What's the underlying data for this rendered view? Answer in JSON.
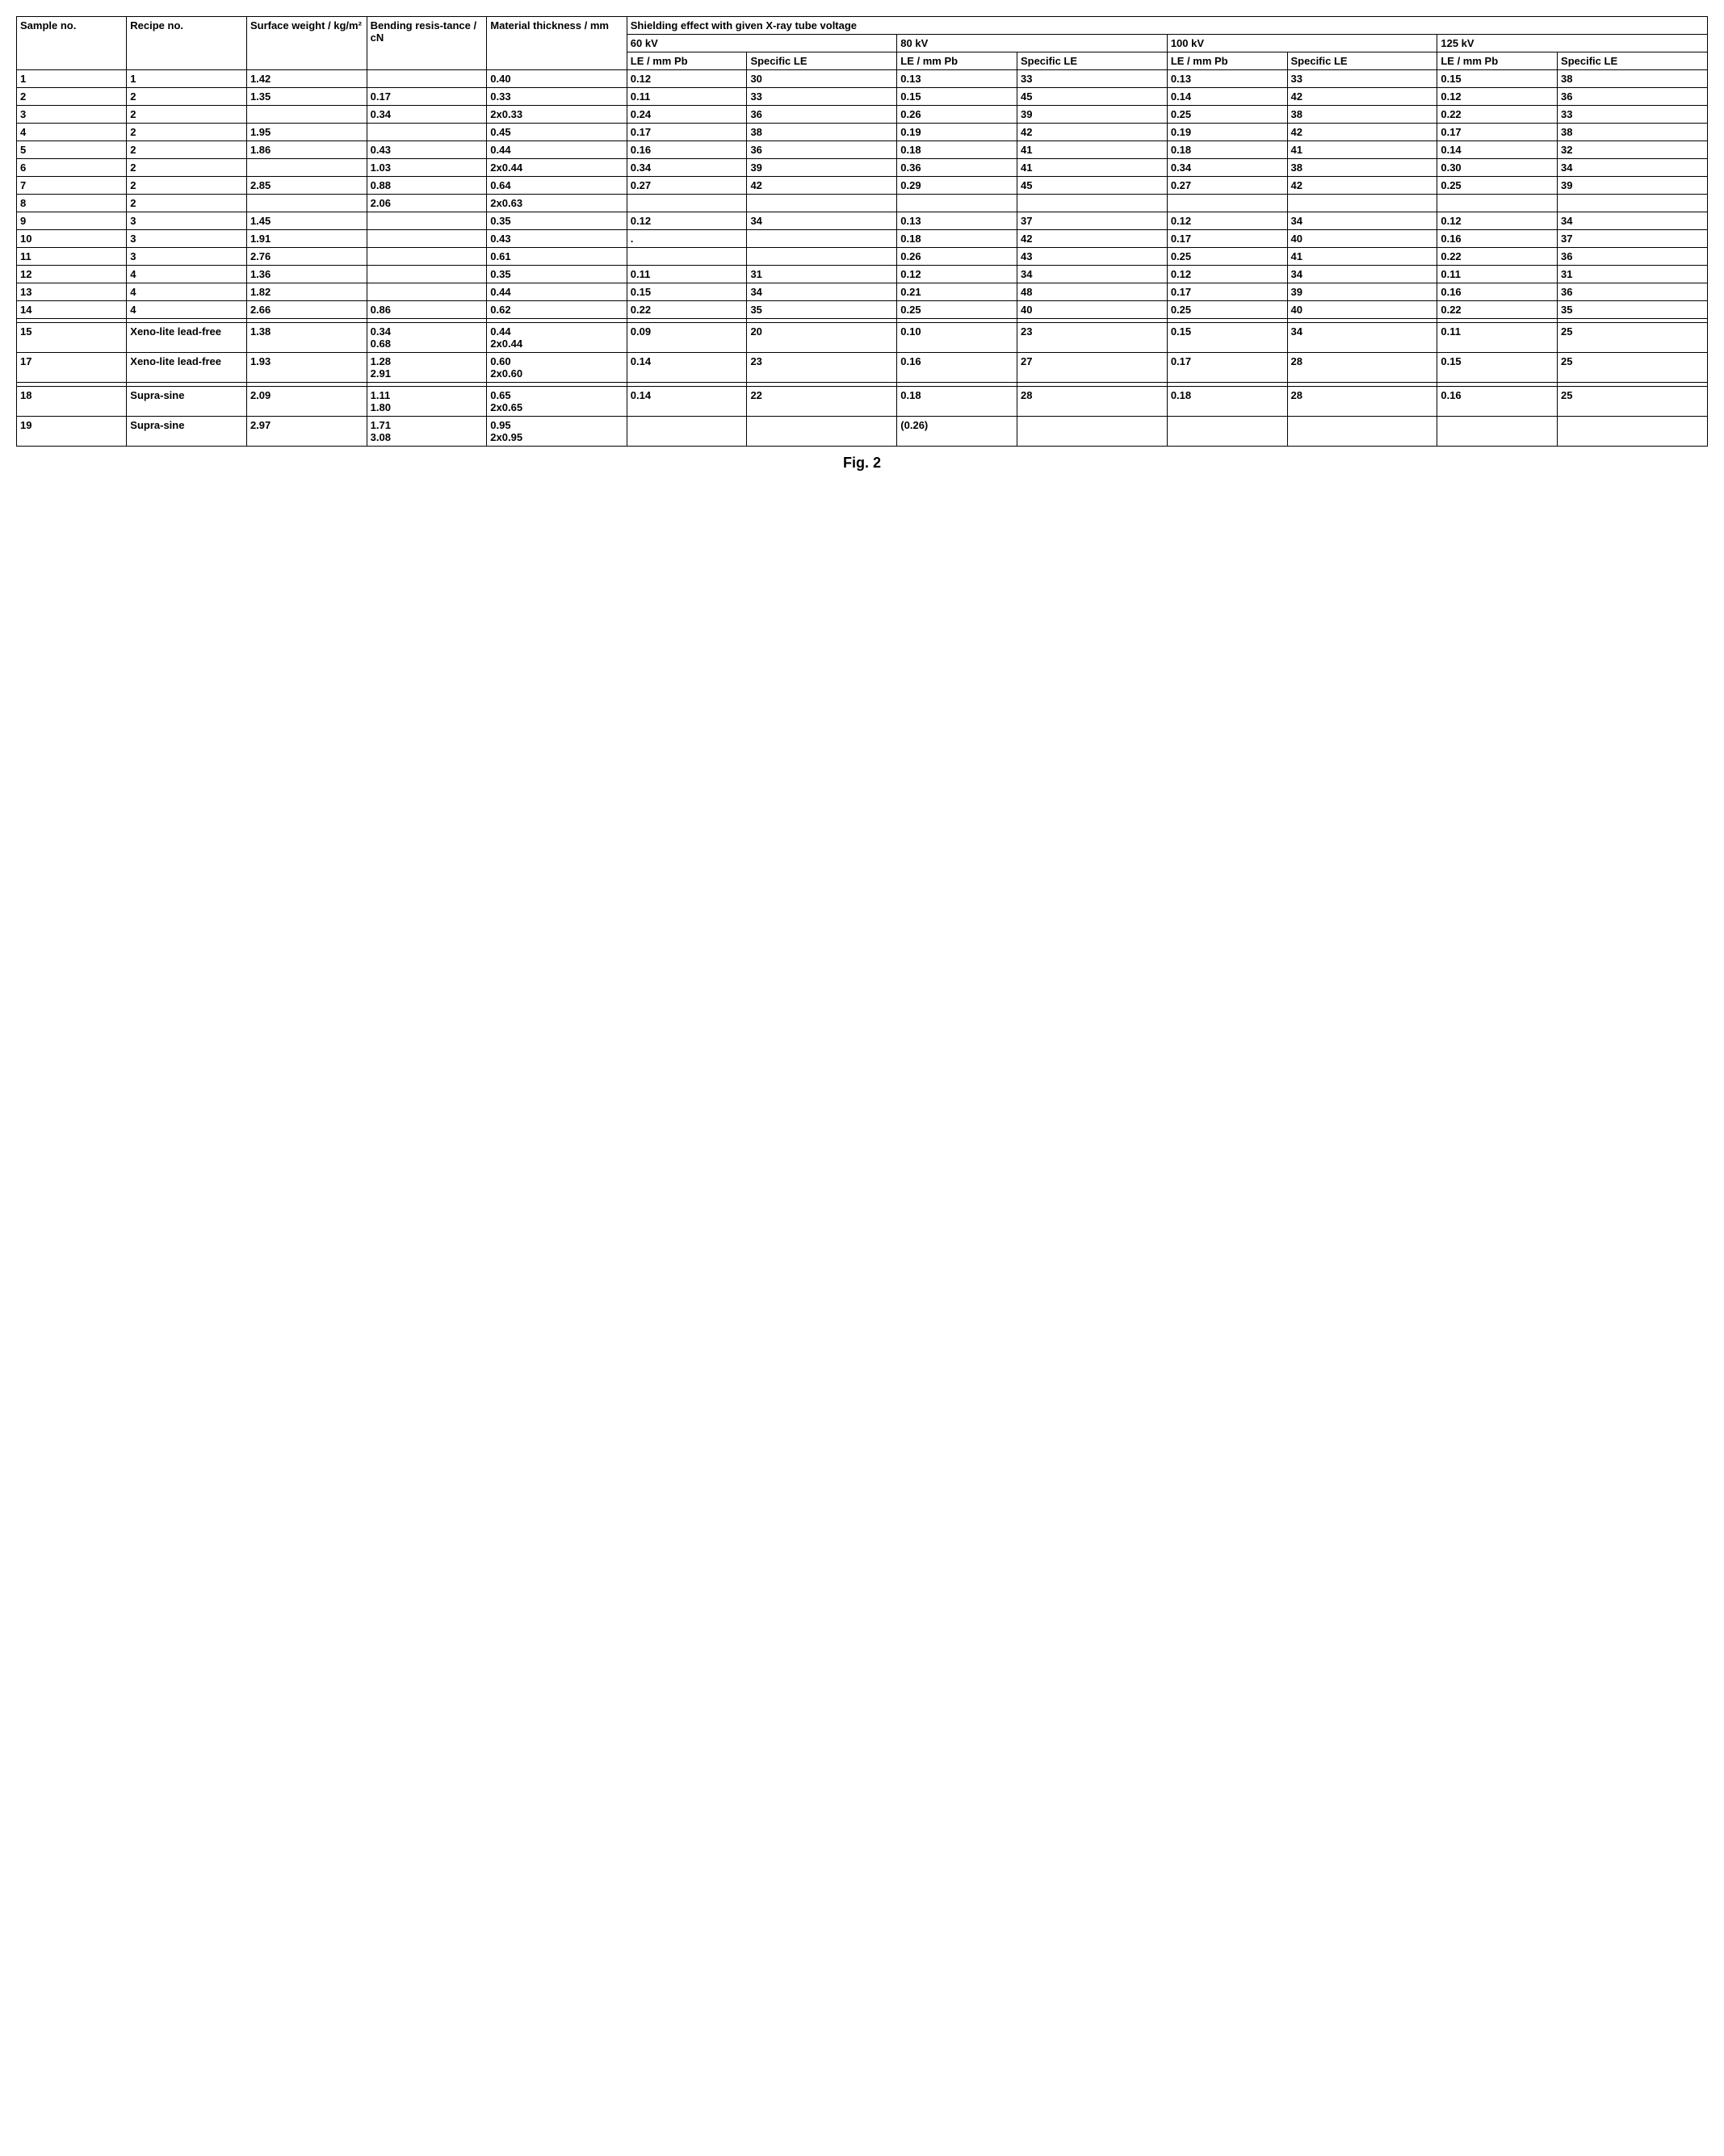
{
  "caption": "Fig. 2",
  "headers": {
    "sample": "Sample no.",
    "recipe": "Recipe no.",
    "surface": "Surface weight / kg/m²",
    "bending": "Bending resis-tance / cN",
    "material": "Material thickness / mm",
    "shielding": "Shielding effect with given X-ray tube voltage",
    "kv60": "60 kV",
    "kv80": "80 kV",
    "kv100": "100 kV",
    "kv125": "125 kV",
    "le": "LE / mm Pb",
    "sle": "Specific LE"
  },
  "rows": [
    {
      "sample": "1",
      "recipe": "1",
      "surface": "1.42",
      "bending": "",
      "material": "0.40",
      "le60": "0.12",
      "sle60": "30",
      "le80": "0.13",
      "sle80": "33",
      "le100": "0.13",
      "sle100": "33",
      "le125": "0.15",
      "sle125": "38"
    },
    {
      "sample": "2",
      "recipe": "2",
      "surface": "1.35",
      "bending": "0.17",
      "material": "0.33",
      "le60": "0.11",
      "sle60": "33",
      "le80": "0.15",
      "sle80": "45",
      "le100": "0.14",
      "sle100": "42",
      "le125": "0.12",
      "sle125": "36"
    },
    {
      "sample": "3",
      "recipe": "2",
      "surface": "",
      "bending": "0.34",
      "material": "2x0.33",
      "le60": "0.24",
      "sle60": "36",
      "le80": "0.26",
      "sle80": "39",
      "le100": "0.25",
      "sle100": "38",
      "le125": "0.22",
      "sle125": "33"
    },
    {
      "sample": "4",
      "recipe": "2",
      "surface": "1.95",
      "bending": "",
      "material": "0.45",
      "le60": "0.17",
      "sle60": "38",
      "le80": "0.19",
      "sle80": "42",
      "le100": "0.19",
      "sle100": "42",
      "le125": "0.17",
      "sle125": "38"
    },
    {
      "sample": "5",
      "recipe": "2",
      "surface": "1.86",
      "bending": "0.43",
      "material": "0.44",
      "le60": "0.16",
      "sle60": "36",
      "le80": "0.18",
      "sle80": "41",
      "le100": "0.18",
      "sle100": "41",
      "le125": "0.14",
      "sle125": "32"
    },
    {
      "sample": "6",
      "recipe": "2",
      "surface": "",
      "bending": "1.03",
      "material": "2x0.44",
      "le60": "0.34",
      "sle60": "39",
      "le80": "0.36",
      "sle80": "41",
      "le100": "0.34",
      "sle100": "38",
      "le125": "0.30",
      "sle125": "34"
    },
    {
      "sample": "7",
      "recipe": "2",
      "surface": "2.85",
      "bending": "0.88",
      "material": "0.64",
      "le60": "0.27",
      "sle60": "42",
      "le80": "0.29",
      "sle80": "45",
      "le100": "0.27",
      "sle100": "42",
      "le125": "0.25",
      "sle125": "39"
    },
    {
      "sample": "8",
      "recipe": "2",
      "surface": "",
      "bending": "2.06",
      "material": "2x0.63",
      "le60": "",
      "sle60": "",
      "le80": "",
      "sle80": "",
      "le100": "",
      "sle100": "",
      "le125": "",
      "sle125": ""
    },
    {
      "sample": "9",
      "recipe": "3",
      "surface": "1.45",
      "bending": "",
      "material": "0.35",
      "le60": "0.12",
      "sle60": "34",
      "le80": "0.13",
      "sle80": "37",
      "le100": "0.12",
      "sle100": "34",
      "le125": "0.12",
      "sle125": "34"
    },
    {
      "sample": "10",
      "recipe": "3",
      "surface": "1.91",
      "bending": "",
      "material": "0.43",
      "le60": ".",
      "sle60": "",
      "le80": "0.18",
      "sle80": "42",
      "le100": "0.17",
      "sle100": "40",
      "le125": "0.16",
      "sle125": "37"
    },
    {
      "sample": "11",
      "recipe": "3",
      "surface": "2.76",
      "bending": "",
      "material": "0.61",
      "le60": "",
      "sle60": "",
      "le80": "0.26",
      "sle80": "43",
      "le100": "0.25",
      "sle100": "41",
      "le125": "0.22",
      "sle125": "36"
    },
    {
      "sample": "12",
      "recipe": "4",
      "surface": "1.36",
      "bending": "",
      "material": "0.35",
      "le60": "0.11",
      "sle60": "31",
      "le80": "0.12",
      "sle80": "34",
      "le100": "0.12",
      "sle100": "34",
      "le125": "0.11",
      "sle125": "31"
    },
    {
      "sample": "13",
      "recipe": "4",
      "surface": "1.82",
      "bending": "",
      "material": "0.44",
      "le60": "0.15",
      "sle60": "34",
      "le80": "0.21",
      "sle80": "48",
      "le100": "0.17",
      "sle100": "39",
      "le125": "0.16",
      "sle125": "36"
    },
    {
      "sample": "14",
      "recipe": "4",
      "surface": "2.66",
      "bending": "0.86",
      "material": "0.62",
      "le60": "0.22",
      "sle60": "35",
      "le80": "0.25",
      "sle80": "40",
      "le100": "0.25",
      "sle100": "40",
      "le125": "0.22",
      "sle125": "35"
    },
    {
      "spacer": true
    },
    {
      "sample": "15",
      "recipe": "Xeno-lite lead-free",
      "surface": "1.38",
      "bending": "0.34\n0.68",
      "material": "0.44\n2x0.44",
      "le60": "0.09",
      "sle60": "20",
      "le80": "0.10",
      "sle80": "23",
      "le100": "0.15",
      "sle100": "34",
      "le125": "0.11",
      "sle125": "25"
    },
    {
      "sample": "17",
      "recipe": "Xeno-lite lead-free",
      "surface": "1.93",
      "bending": "1.28\n2.91",
      "material": "0.60\n2x0.60",
      "le60": "0.14",
      "sle60": "23",
      "le80": "0.16",
      "sle80": "27",
      "le100": "0.17",
      "sle100": "28",
      "le125": "0.15",
      "sle125": "25"
    },
    {
      "spacer": true
    },
    {
      "sample": "18",
      "recipe": "Supra-sine",
      "surface": "2.09",
      "bending": "1.11\n1.80",
      "material": "0.65\n2x0.65",
      "le60": "0.14",
      "sle60": "22",
      "le80": "0.18",
      "sle80": "28",
      "le100": "0.18",
      "sle100": "28",
      "le125": "0.16",
      "sle125": "25"
    },
    {
      "sample": "19",
      "recipe": "Supra-sine",
      "surface": "2.97",
      "bending": "1.71\n3.08",
      "material": "0.95\n2x0.95",
      "le60": "",
      "sle60": "",
      "le80": "(0.26)",
      "sle80": "",
      "le100": "",
      "sle100": "",
      "le125": "",
      "sle125": ""
    }
  ]
}
